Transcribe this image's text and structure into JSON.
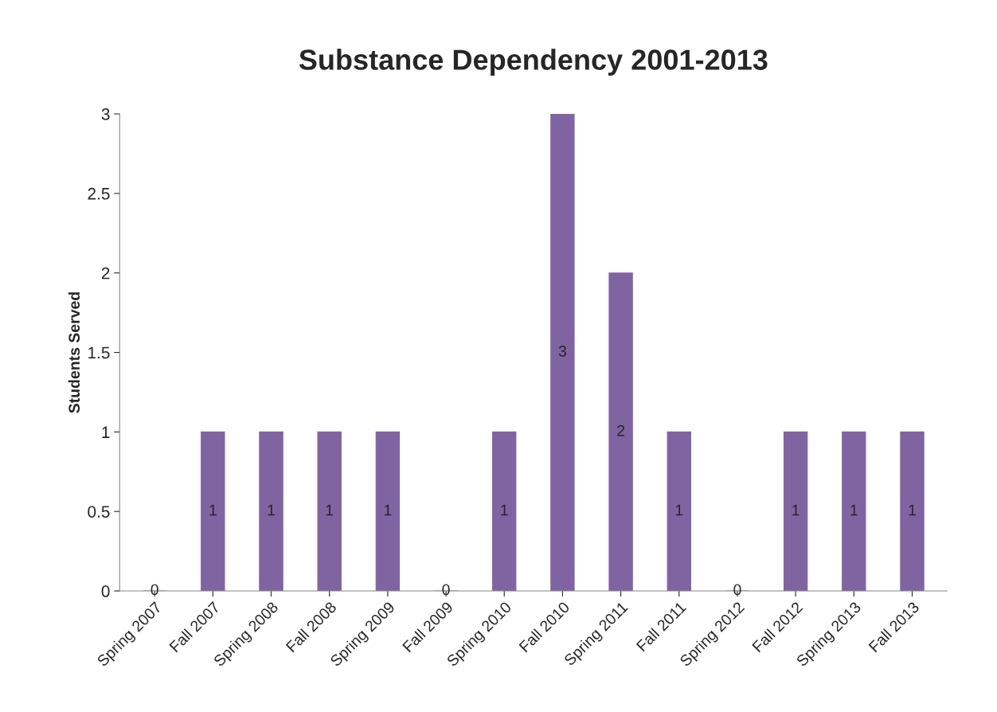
{
  "chart_data": {
    "type": "bar",
    "title": "Substance Dependency 2001-2013",
    "ylabel": "Students Served",
    "categories": [
      "Spring 2007",
      "Fall 2007",
      "Spring 2008",
      "Fall 2008",
      "Spring 2009",
      "Fall 2009",
      "Spring 2010",
      "Fall 2010",
      "Spring 2011",
      "Fall 2011",
      "Spring 2012",
      "Fall 2012",
      "Spring 2013",
      "Fall 2013"
    ],
    "values": [
      0,
      1,
      1,
      1,
      1,
      0,
      1,
      3,
      2,
      1,
      0,
      1,
      1,
      1
    ],
    "color": "#8064a2",
    "ylim": [
      0,
      3
    ],
    "yticks": [
      0,
      0.5,
      1,
      1.5,
      2,
      2.5,
      3
    ],
    "data_labels": true,
    "grid": false,
    "legend": false
  }
}
